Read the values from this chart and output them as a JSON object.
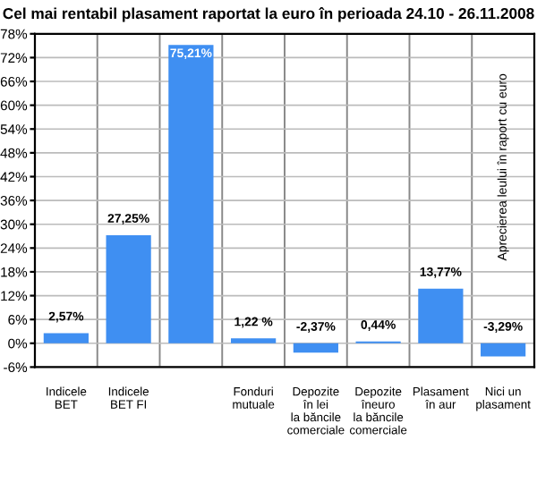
{
  "chart_data": {
    "type": "bar",
    "title": "Cel mai rentabil plasament raportat la euro în perioada 24.10 - 26.11.2008",
    "categories": [
      "Indicele\nBET",
      "Indicele\nBET FI",
      null,
      "Fonduri\nmutuale",
      "Depozite\nîn lei\nla băncile\ncomerciale",
      "Depozite\nîneuro\nla băncile\ncomerciale",
      "Plasament\nîn aur",
      "Nici un\nplasament"
    ],
    "values": [
      2.57,
      27.25,
      75.21,
      1.22,
      -2.37,
      0.44,
      13.77,
      -3.29
    ],
    "value_labels": [
      "2,57%",
      "27,25%",
      "75,21%",
      "1,22 %",
      "-2,37%",
      "0,44%",
      "13,77%",
      "-3,29%"
    ],
    "color": "#3f8ff2",
    "ylim": [
      -6,
      78
    ],
    "yticks": [
      {
        "value": -6,
        "label": "-6%"
      },
      {
        "value": 0,
        "label": "0%"
      },
      {
        "value": 6,
        "label": "6%"
      },
      {
        "value": 12,
        "label": "12%"
      },
      {
        "value": 18,
        "label": "18%"
      },
      {
        "value": 24,
        "label": "24%"
      },
      {
        "value": 30,
        "label": "30%"
      },
      {
        "value": 36,
        "label": "36%"
      },
      {
        "value": 42,
        "label": "42%"
      },
      {
        "value": 48,
        "label": "48%"
      },
      {
        "value": 54,
        "label": "54%"
      },
      {
        "value": 60,
        "label": "60%"
      },
      {
        "value": 66,
        "label": "66%"
      },
      {
        "value": 72,
        "label": "72%"
      },
      {
        "value": 78,
        "label": "78%"
      }
    ],
    "grid": "y",
    "annotations": [
      "Aprecierea leului în raport cu euro"
    ]
  }
}
